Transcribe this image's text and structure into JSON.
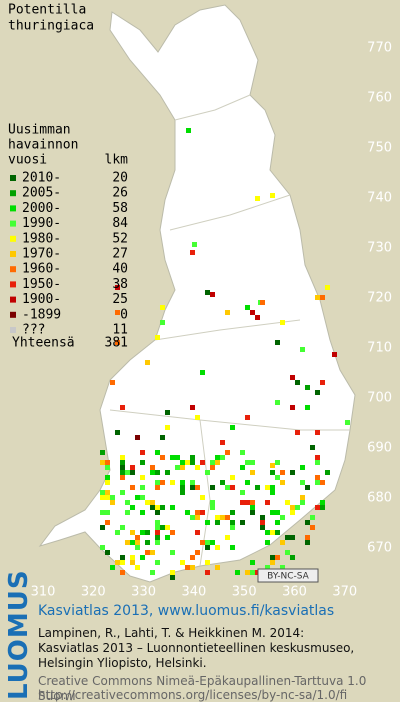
{
  "map": {
    "title": [
      "Potentilla",
      "thuringiaca"
    ],
    "legend": {
      "header": [
        "Uusimman",
        "havainnon",
        "vuosi"
      ],
      "count_header": "lkm",
      "rows": [
        {
          "label": "2010-",
          "count": 20,
          "color": "#006400"
        },
        {
          "label": "2005-",
          "count": 26,
          "color": "#00a000"
        },
        {
          "label": "2000-",
          "count": 58,
          "color": "#00dd00"
        },
        {
          "label": "1990-",
          "count": 84,
          "color": "#44ff33"
        },
        {
          "label": "1980-",
          "count": 52,
          "color": "#ffff00"
        },
        {
          "label": "1970-",
          "count": 27,
          "color": "#ffc800"
        },
        {
          "label": "1960-",
          "count": 40,
          "color": "#ff6a00"
        },
        {
          "label": "1950-",
          "count": 38,
          "color": "#e8200a"
        },
        {
          "label": "1900-",
          "count": 25,
          "color": "#c00000"
        },
        {
          "label": "-1899",
          "count": 0,
          "color": "#7a0000"
        },
        {
          "label": "???",
          "count": 11,
          "color": "#c8c8c8"
        }
      ],
      "total_label": "Yhteensä",
      "total": 381
    },
    "northing_ticks": [
      770,
      760,
      750,
      740,
      730,
      720,
      710,
      700,
      690,
      680,
      670
    ],
    "easting_ticks": [
      310,
      320,
      330,
      340,
      350,
      360,
      370
    ],
    "license_badge": "BY-NC-SA"
  },
  "footer": {
    "logo": "LUOMUS",
    "heading": "Kasviatlas 2013, www.luomus.fi/kasviatlas",
    "citation": [
      "Lampinen, R., Lahti, T. & Heikkinen M. 2014:",
      "Kasviatlas 2013 – Luonnontieteellinen keskusmuseo,",
      "Helsingin Yliopisto, Helsinki."
    ],
    "license": [
      "Creative Commons Nimeä-Epäkaupallinen-Tarttuva 1.0 Suomi",
      "http://creativecommons.org/licenses/by-nc-sa/1.0/fi"
    ]
  }
}
